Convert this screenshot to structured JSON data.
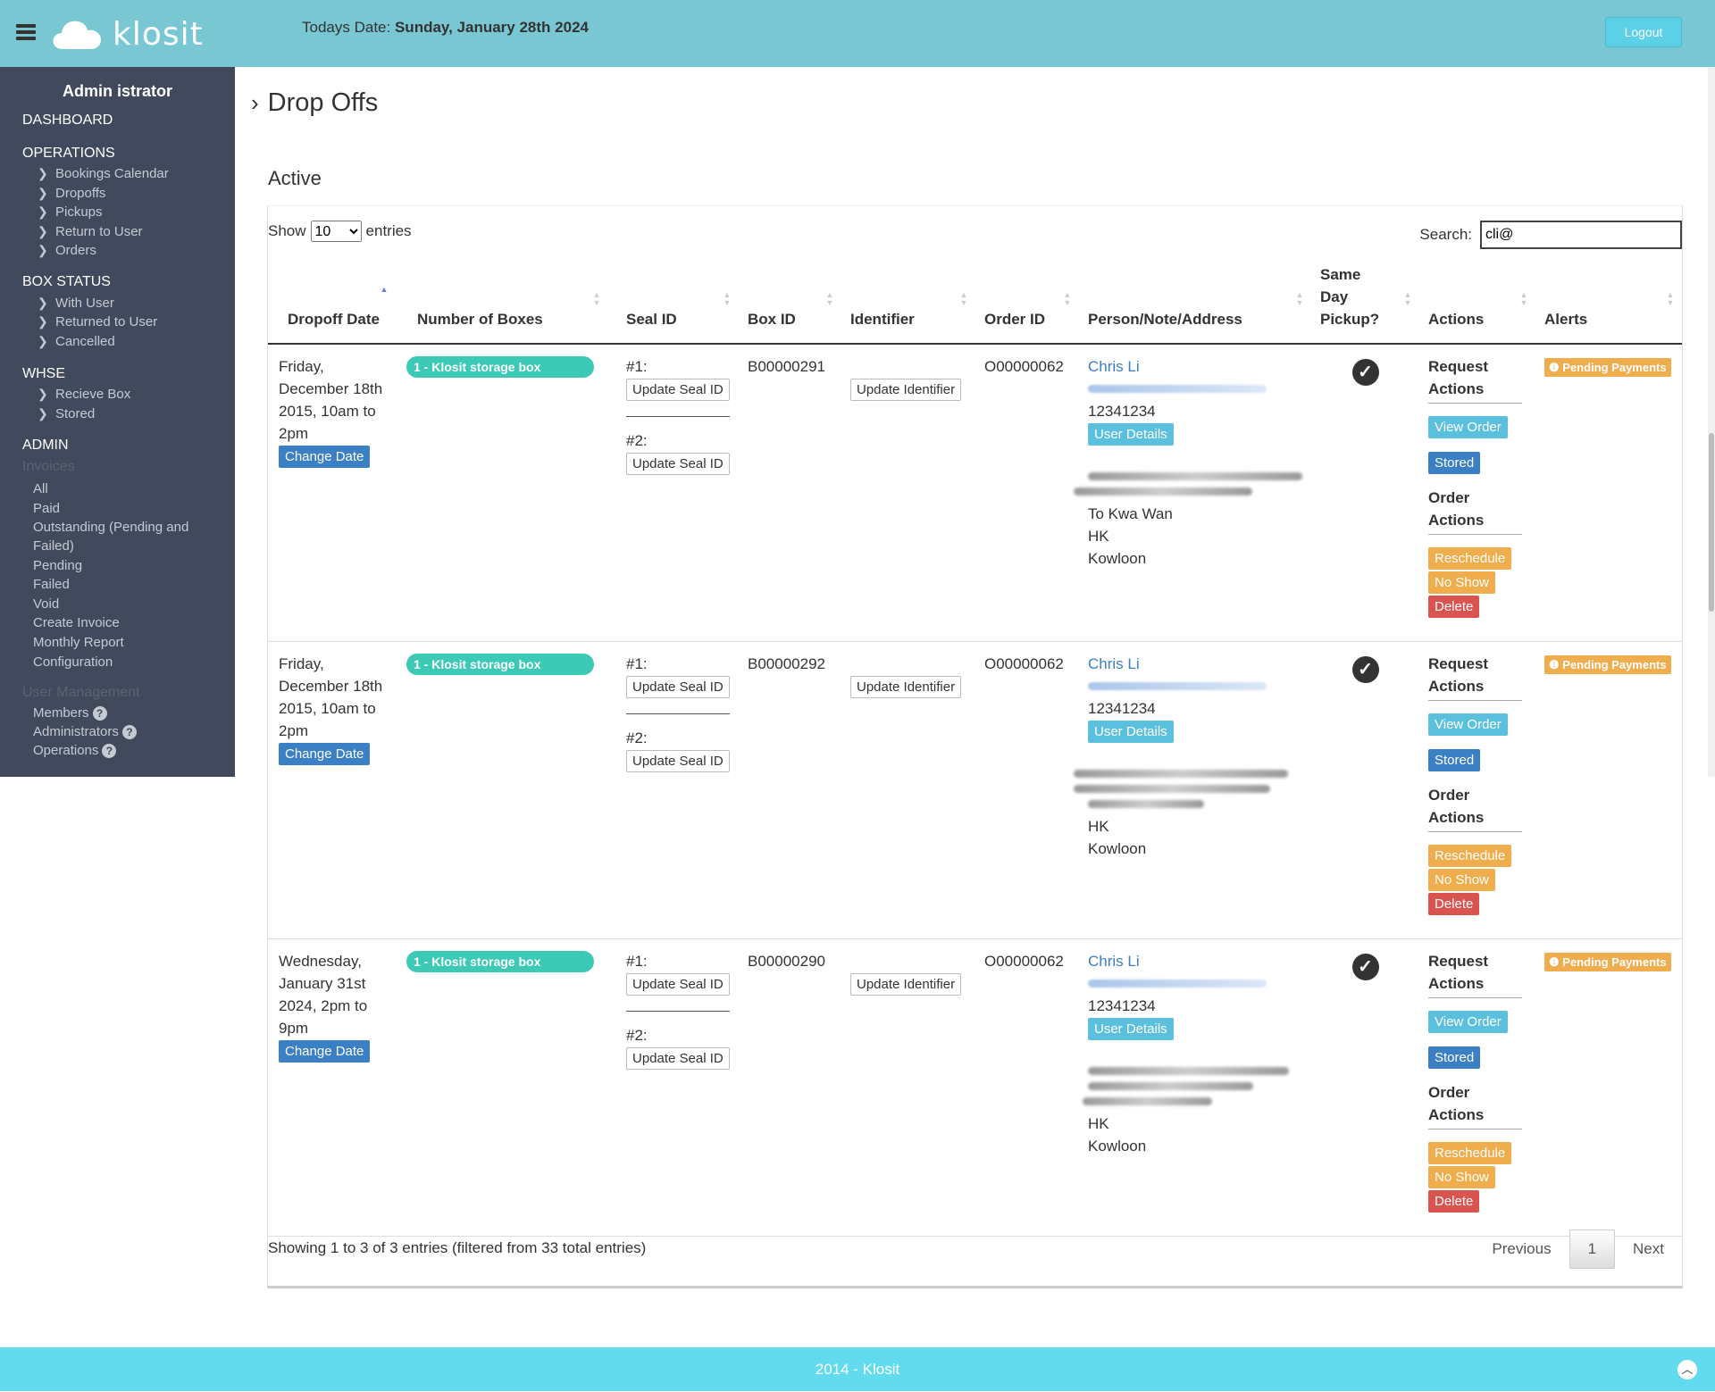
{
  "header": {
    "brand": "klosit",
    "date_label": "Todays Date:",
    "date_value": "Sunday, January 28th 2024",
    "logout": "Logout"
  },
  "sidebar": {
    "user": "Admin istrator",
    "dashboard": "DASHBOARD",
    "operations": {
      "title": "OPERATIONS",
      "items": [
        "Bookings Calendar",
        "Dropoffs",
        "Pickups",
        "Return to User",
        "Orders"
      ]
    },
    "box_status": {
      "title": "BOX STATUS",
      "items": [
        "With User",
        "Returned to User",
        "Cancelled"
      ]
    },
    "whse": {
      "title": "WHSE",
      "items": [
        "Recieve Box",
        "Stored"
      ]
    },
    "admin": {
      "title": "ADMIN",
      "invoices_title": "Invoices",
      "items": [
        "All",
        "Paid",
        "Outstanding (Pending and",
        "Failed)",
        "Pending",
        "Failed",
        "Void",
        "Create Invoice",
        "Monthly Report",
        "Configuration"
      ]
    },
    "user_mgmt": {
      "title": "User Management",
      "items": [
        "Members",
        "Administrators",
        "Operations"
      ]
    }
  },
  "page": {
    "title": "Drop Offs",
    "section": "Active"
  },
  "table_controls": {
    "show_label": "Show",
    "entries_value": "10",
    "entries_label": "entries",
    "search_label": "Search:",
    "search_value": "cli@"
  },
  "columns": [
    "Dropoff Date",
    "Number of Boxes",
    "Seal ID",
    "Box ID",
    "Identifier",
    "Order ID",
    "Person/Note/Address",
    "Same Day Pickup?",
    "Actions",
    "Alerts"
  ],
  "labels": {
    "change_date": "Change Date",
    "seal1": "#1:",
    "seal2": "#2:",
    "update_seal": "Update Seal ID",
    "update_identifier": "Update Identifier",
    "user_details": "User Details",
    "request_actions": "Request Actions",
    "view_order": "View Order",
    "stored": "Stored",
    "order_actions": "Order Actions",
    "reschedule": "Reschedule",
    "no_show": "No Show",
    "delete": "Delete",
    "pending_payments": "Pending Payments"
  },
  "rows": [
    {
      "date": "Friday, December 18th 2015, 10am to 2pm",
      "boxes": "1 - Klosit storage box",
      "box_id": "B00000291",
      "order_id": "O00000062",
      "person": "Chris Li",
      "phone": "12341234",
      "address": [
        "To Kwa Wan",
        "HK",
        "Kowloon"
      ]
    },
    {
      "date": "Friday, December 18th 2015, 10am to 2pm",
      "boxes": "1 - Klosit storage box",
      "box_id": "B00000292",
      "order_id": "O00000062",
      "person": "Chris Li",
      "phone": "12341234",
      "address": [
        "HK",
        "Kowloon"
      ]
    },
    {
      "date": "Wednesday, January 31st 2024, 2pm to 9pm",
      "boxes": "1 - Klosit storage box",
      "box_id": "B00000290",
      "order_id": "O00000062",
      "person": "Chris Li",
      "phone": "12341234",
      "address": [
        "HK",
        "Kowloon"
      ]
    }
  ],
  "footer_info": "Showing 1 to 3 of 3 entries (filtered from 33 total entries)",
  "pagination": {
    "previous": "Previous",
    "current": "1",
    "next": "Next"
  },
  "footer": "2014 - Klosit",
  "colors": {
    "topbar": "#7ac7d4",
    "sidebar": "#404a5c",
    "footer": "#62dbef",
    "primary": "#3b7fc4",
    "info": "#5bc0de",
    "warning": "#f0ad4e",
    "danger": "#d9534f",
    "pill": "#3cc9b6"
  }
}
